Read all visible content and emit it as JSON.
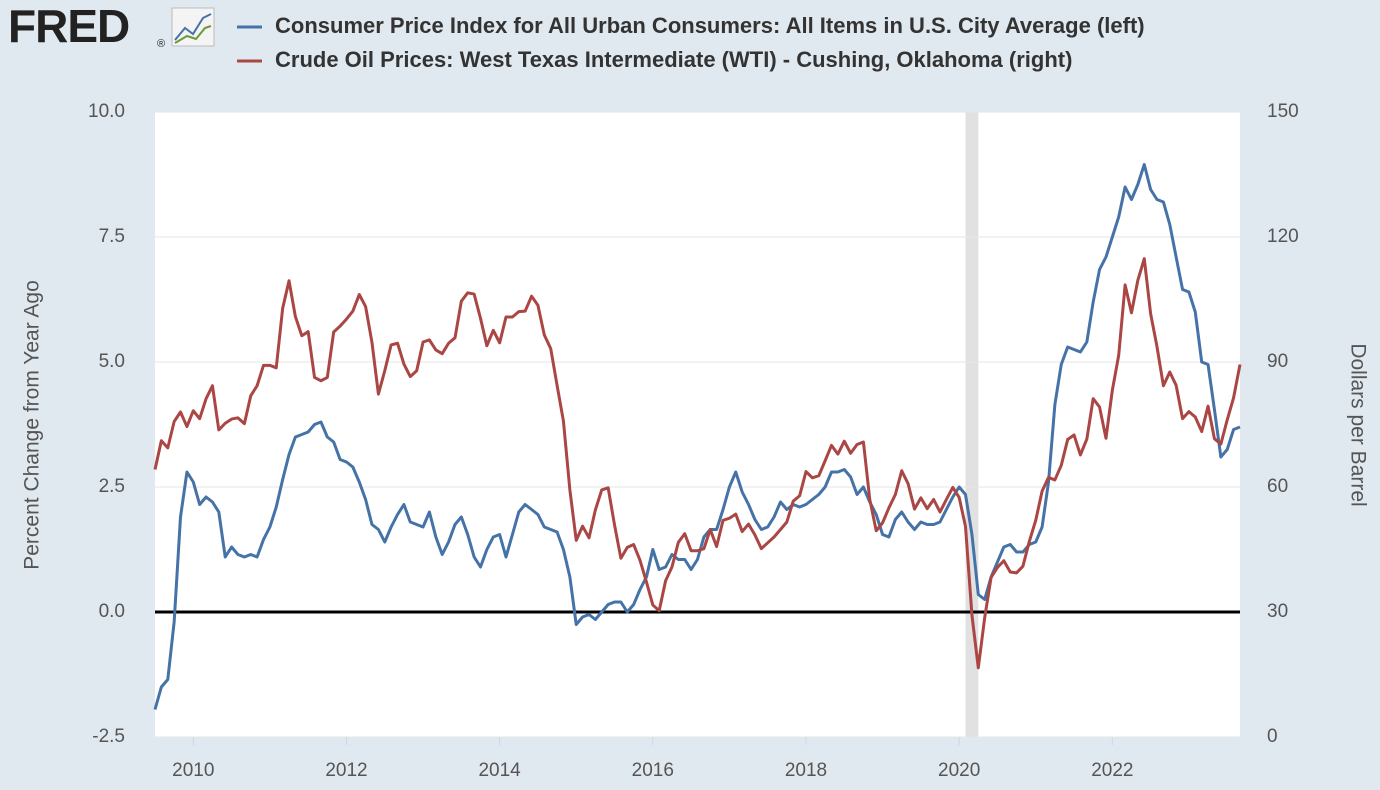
{
  "chart_data": {
    "type": "line",
    "logo": "FRED",
    "logo_mark": "®",
    "x": [
      2009.5,
      2009.583,
      2009.667,
      2009.75,
      2009.833,
      2009.917,
      2010,
      2010.083,
      2010.167,
      2010.25,
      2010.333,
      2010.417,
      2010.5,
      2010.583,
      2010.667,
      2010.75,
      2010.833,
      2010.917,
      2011,
      2011.083,
      2011.167,
      2011.25,
      2011.333,
      2011.417,
      2011.5,
      2011.583,
      2011.667,
      2011.75,
      2011.833,
      2011.917,
      2012,
      2012.083,
      2012.167,
      2012.25,
      2012.333,
      2012.417,
      2012.5,
      2012.583,
      2012.667,
      2012.75,
      2012.833,
      2012.917,
      2013,
      2013.083,
      2013.167,
      2013.25,
      2013.333,
      2013.417,
      2013.5,
      2013.583,
      2013.667,
      2013.75,
      2013.833,
      2013.917,
      2014,
      2014.083,
      2014.167,
      2014.25,
      2014.333,
      2014.417,
      2014.5,
      2014.583,
      2014.667,
      2014.75,
      2014.833,
      2014.917,
      2015,
      2015.083,
      2015.167,
      2015.25,
      2015.333,
      2015.417,
      2015.5,
      2015.583,
      2015.667,
      2015.75,
      2015.833,
      2015.917,
      2016,
      2016.083,
      2016.167,
      2016.25,
      2016.333,
      2016.417,
      2016.5,
      2016.583,
      2016.667,
      2016.75,
      2016.833,
      2016.917,
      2017,
      2017.083,
      2017.167,
      2017.25,
      2017.333,
      2017.417,
      2017.5,
      2017.583,
      2017.667,
      2017.75,
      2017.833,
      2017.917,
      2018,
      2018.083,
      2018.167,
      2018.25,
      2018.333,
      2018.417,
      2018.5,
      2018.583,
      2018.667,
      2018.75,
      2018.833,
      2018.917,
      2019,
      2019.083,
      2019.167,
      2019.25,
      2019.333,
      2019.417,
      2019.5,
      2019.583,
      2019.667,
      2019.75,
      2019.833,
      2019.917,
      2020,
      2020.083,
      2020.167,
      2020.25,
      2020.333,
      2020.417,
      2020.5,
      2020.583,
      2020.667,
      2020.75,
      2020.833,
      2020.917,
      2021,
      2021.083,
      2021.167,
      2021.25,
      2021.333,
      2021.417,
      2021.5,
      2021.583,
      2021.667,
      2021.75,
      2021.833,
      2021.917,
      2022,
      2022.083,
      2022.167,
      2022.25,
      2022.333,
      2022.417,
      2022.5,
      2022.583,
      2022.667,
      2022.75,
      2022.833,
      2022.917,
      2023,
      2023.083,
      2023.167,
      2023.25,
      2023.333,
      2023.417,
      2023.5,
      2023.583,
      2023.667
    ],
    "series": [
      {
        "name": "Consumer Price Index for All Urban Consumers: All Items in U.S. City Average (left)",
        "color": "#4572a7",
        "axis": "y",
        "values": [
          -1.95,
          -1.5,
          -1.35,
          -0.2,
          1.9,
          2.8,
          2.6,
          2.15,
          2.3,
          2.2,
          2.0,
          1.1,
          1.3,
          1.15,
          1.1,
          1.15,
          1.1,
          1.45,
          1.7,
          2.1,
          2.65,
          3.15,
          3.5,
          3.55,
          3.6,
          3.75,
          3.8,
          3.5,
          3.4,
          3.05,
          3.0,
          2.9,
          2.6,
          2.25,
          1.75,
          1.65,
          1.4,
          1.7,
          1.95,
          2.15,
          1.8,
          1.75,
          1.7,
          2.0,
          1.5,
          1.15,
          1.4,
          1.75,
          1.9,
          1.55,
          1.1,
          0.9,
          1.25,
          1.5,
          1.55,
          1.1,
          1.55,
          2.0,
          2.15,
          2.05,
          1.95,
          1.7,
          1.65,
          1.6,
          1.25,
          0.7,
          -0.25,
          -0.1,
          -0.05,
          -0.15,
          0.0,
          0.15,
          0.2,
          0.2,
          0.0,
          0.15,
          0.45,
          0.7,
          1.25,
          0.85,
          0.9,
          1.15,
          1.05,
          1.05,
          0.85,
          1.05,
          1.5,
          1.65,
          1.65,
          2.05,
          2.5,
          2.8,
          2.4,
          2.15,
          1.85,
          1.65,
          1.7,
          1.9,
          2.2,
          2.05,
          2.15,
          2.1,
          2.15,
          2.25,
          2.35,
          2.5,
          2.8,
          2.8,
          2.85,
          2.7,
          2.35,
          2.5,
          2.2,
          1.95,
          1.55,
          1.5,
          1.85,
          2.0,
          1.8,
          1.65,
          1.8,
          1.75,
          1.75,
          1.8,
          2.05,
          2.3,
          2.5,
          2.35,
          1.55,
          0.35,
          0.25,
          0.7,
          1.0,
          1.3,
          1.35,
          1.2,
          1.2,
          1.35,
          1.4,
          1.7,
          2.6,
          4.15,
          4.95,
          5.3,
          5.25,
          5.2,
          5.4,
          6.2,
          6.85,
          7.1,
          7.5,
          7.9,
          8.5,
          8.25,
          8.55,
          8.95,
          8.45,
          8.25,
          8.2,
          7.75,
          7.1,
          6.45,
          6.4,
          6.0,
          5.0,
          4.95,
          4.05,
          3.1,
          3.25,
          3.65,
          3.7
        ]
      },
      {
        "name": "Crude Oil Prices: West Texas Intermediate (WTI) - Cushing, Oklahoma (right)",
        "color": "#aa4643",
        "axis": "y2",
        "values": [
          64.2,
          71.1,
          69.4,
          75.7,
          78.0,
          74.5,
          78.3,
          76.4,
          81.2,
          84.3,
          73.7,
          75.3,
          76.3,
          76.6,
          75.2,
          81.9,
          84.3,
          89.2,
          89.2,
          88.6,
          102.9,
          109.5,
          100.9,
          96.3,
          97.3,
          86.3,
          85.5,
          86.3,
          97.2,
          98.6,
          100.3,
          102.2,
          106.2,
          103.3,
          94.7,
          82.3,
          87.9,
          94.1,
          94.5,
          89.5,
          86.5,
          87.9,
          94.8,
          95.3,
          92.9,
          92.0,
          94.5,
          95.8,
          104.6,
          106.6,
          106.3,
          100.5,
          93.9,
          97.6,
          94.6,
          100.8,
          100.8,
          102.1,
          102.2,
          105.8,
          103.6,
          96.5,
          93.2,
          84.4,
          75.8,
          59.3,
          47.2,
          50.6,
          47.8,
          54.5,
          59.3,
          59.8,
          50.9,
          42.9,
          45.5,
          46.2,
          42.4,
          37.2,
          31.7,
          30.3,
          37.5,
          40.8,
          46.7,
          48.8,
          44.7,
          44.7,
          45.2,
          49.8,
          45.7,
          52.0,
          52.5,
          53.5,
          49.3,
          51.1,
          48.5,
          45.2,
          46.6,
          48.0,
          49.8,
          51.6,
          56.6,
          57.9,
          63.7,
          62.2,
          62.7,
          66.3,
          70.0,
          67.9,
          71.0,
          68.1,
          70.2,
          70.8,
          57.0,
          49.5,
          51.4,
          55.0,
          58.2,
          63.9,
          60.8,
          54.7,
          57.4,
          54.8,
          57.0,
          54.0,
          57.0,
          59.9,
          57.5,
          50.5,
          29.2,
          16.6,
          28.6,
          38.3,
          40.7,
          42.3,
          39.6,
          39.4,
          41.0,
          47.0,
          52.0,
          59.0,
          62.3,
          61.7,
          65.2,
          71.4,
          72.5,
          67.7,
          71.5,
          81.2,
          79.2,
          71.7,
          83.2,
          91.6,
          108.5,
          101.8,
          109.6,
          114.8,
          101.6,
          93.7,
          84.3,
          87.6,
          84.4,
          76.4,
          78.1,
          76.8,
          73.3,
          79.4,
          71.6,
          70.3,
          76.1,
          81.4,
          89.4
        ]
      }
    ],
    "xlim": [
      2009.5,
      2023.667
    ],
    "xticks": [
      2010,
      2012,
      2014,
      2016,
      2018,
      2020,
      2022
    ],
    "ylim": [
      -2.5,
      10
    ],
    "yticks": [
      -2.5,
      {
        "value": 0,
        "label": "0.0"
      },
      2.5,
      {
        "value": 5,
        "label": "5.0"
      },
      7.5,
      {
        "value": 10,
        "label": "10.0"
      }
    ],
    "y2lim": [
      0,
      150
    ],
    "y2ticks": [
      0,
      30,
      60,
      90,
      120,
      150
    ],
    "ylabel": "Percent Change from Year Ago",
    "y2label": "Dollars per Barrel",
    "grid": true,
    "recessions": [
      [
        2020.083,
        2020.25
      ]
    ]
  }
}
